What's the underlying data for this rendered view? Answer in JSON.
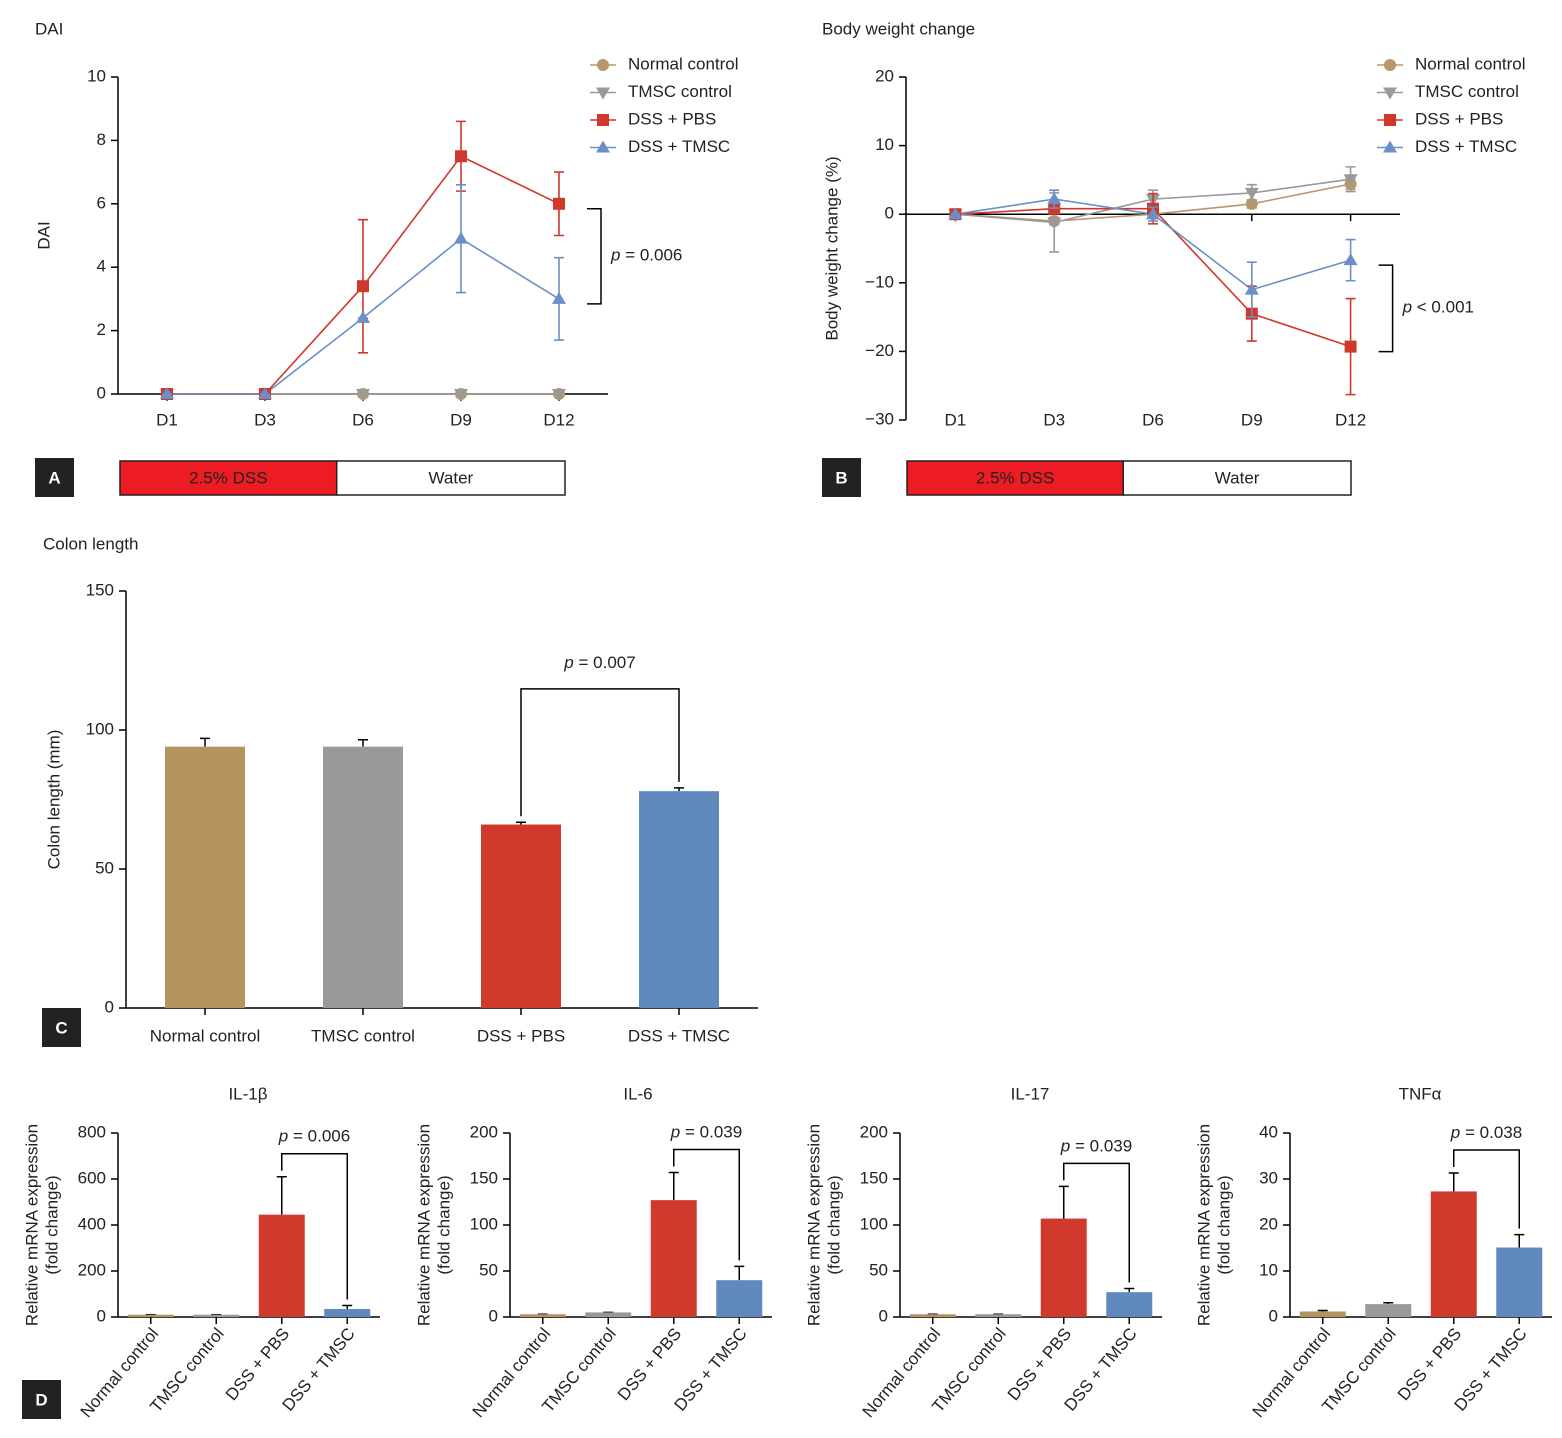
{
  "chart_data": [
    {
      "type": "line",
      "panel_label": "A",
      "title": "DAI",
      "y_label": "DAI",
      "categories": [
        "D1",
        "D3",
        "D6",
        "D9",
        "D12"
      ],
      "ylim": [
        0,
        10
      ],
      "yticks": [
        0,
        2,
        4,
        6,
        8,
        10
      ],
      "series": [
        {
          "name": "Normal control",
          "color": "#b8976a",
          "marker": "circle",
          "values": [
            0,
            0,
            0,
            0,
            0
          ],
          "errors": [
            0,
            0,
            0,
            0,
            0
          ]
        },
        {
          "name": "TMSC control",
          "color": "#999999",
          "marker": "triangle-down",
          "values": [
            0,
            0,
            0,
            0,
            0
          ],
          "errors": [
            0,
            0,
            0,
            0,
            0
          ]
        },
        {
          "name": "DSS + PBS",
          "color": "#d0382b",
          "marker": "square",
          "values": [
            0,
            0,
            3.4,
            7.5,
            6.0
          ],
          "errors": [
            0,
            0,
            2.1,
            1.1,
            1.0
          ]
        },
        {
          "name": "DSS + TMSC",
          "color": "#6b8fc7",
          "marker": "triangle-up",
          "values": [
            0,
            0,
            2.4,
            4.9,
            3.0
          ],
          "errors": [
            0,
            0,
            0,
            1.7,
            1.3
          ]
        }
      ],
      "annotation": "p = 0.006",
      "timeline": [
        {
          "label": "2.5% DSS",
          "color": "#ed1c24"
        },
        {
          "label": "Water",
          "color": "#ffffff"
        }
      ]
    },
    {
      "type": "line",
      "panel_label": "B",
      "title": "Body weight change",
      "y_label": "Body weight change (%)",
      "categories": [
        "D1",
        "D3",
        "D6",
        "D9",
        "D12"
      ],
      "ylim": [
        -30,
        20
      ],
      "yticks": [
        {
          "value": -30,
          "label": "−30"
        },
        {
          "value": -20,
          "label": "−20"
        },
        {
          "value": -10,
          "label": "−10"
        },
        0,
        10,
        20
      ],
      "series": [
        {
          "name": "Normal control",
          "color": "#b8976a",
          "marker": "circle",
          "values": [
            0,
            -1.0,
            0,
            1.5,
            4.4
          ],
          "errors": [
            0,
            0.5,
            0.5,
            0.6,
            0.8
          ]
        },
        {
          "name": "TMSC control",
          "color": "#999999",
          "marker": "triangle-down",
          "values": [
            0,
            -1.2,
            2.2,
            3.1,
            5.1
          ],
          "errors": [
            0,
            4.3,
            1.3,
            1.2,
            1.8
          ]
        },
        {
          "name": "DSS + PBS",
          "color": "#d0382b",
          "marker": "square",
          "values": [
            0,
            0.8,
            0.8,
            -14.5,
            -19.3
          ],
          "errors": [
            0,
            0.5,
            2.2,
            4.0,
            7.0
          ]
        },
        {
          "name": "DSS + TMSC",
          "color": "#6b8fc7",
          "marker": "triangle-up",
          "values": [
            0,
            2.2,
            0,
            -11.0,
            -6.7
          ],
          "errors": [
            0,
            1.3,
            1.0,
            4.0,
            3.0
          ]
        }
      ],
      "annotation": "p < 0.001",
      "timeline": [
        {
          "label": "2.5% DSS",
          "color": "#ed1c24"
        },
        {
          "label": "Water",
          "color": "#ffffff"
        }
      ]
    },
    {
      "type": "bar",
      "panel_label": "C",
      "title": "Colon length",
      "y_label": "Colon length (mm)",
      "categories": [
        "Normal control",
        "TMSC control",
        "DSS + PBS",
        "DSS + TMSC"
      ],
      "values": [
        94,
        94,
        66,
        78
      ],
      "errors": [
        3,
        2.5,
        0.8,
        1.2
      ],
      "colors": [
        "#b5935e",
        "#999999",
        "#d03a2d",
        "#6089bd"
      ],
      "ylim": [
        0,
        150
      ],
      "yticks": [
        0,
        50,
        100,
        150
      ],
      "annotation": "p = 0.007"
    },
    {
      "type": "bar",
      "panel_label": "D",
      "title": "IL-1β",
      "y_label": [
        "Relative mRNA expression",
        "(fold change)"
      ],
      "categories": [
        "Normal control",
        "TMSC control",
        "DSS + PBS",
        "DSS + TMSC"
      ],
      "values": [
        10,
        10,
        445,
        35
      ],
      "errors": [
        0,
        0,
        165,
        15
      ],
      "colors": [
        "#b5935e",
        "#999999",
        "#d03a2d",
        "#6089bd"
      ],
      "ylim": [
        0,
        800
      ],
      "yticks": [
        0,
        200,
        400,
        600,
        800
      ],
      "annotation": "p = 0.006"
    },
    {
      "type": "bar",
      "title": "IL-6",
      "y_label": [
        "Relative mRNA expression",
        "(fold change)"
      ],
      "categories": [
        "Normal control",
        "TMSC control",
        "DSS + PBS",
        "DSS + TMSC"
      ],
      "values": [
        3,
        5,
        127,
        40
      ],
      "errors": [
        0,
        0,
        30,
        15
      ],
      "colors": [
        "#b5935e",
        "#999999",
        "#d03a2d",
        "#6089bd"
      ],
      "ylim": [
        0,
        200
      ],
      "yticks": [
        0,
        50,
        100,
        150,
        200
      ],
      "annotation": "p = 0.039"
    },
    {
      "type": "bar",
      "title": "IL-17",
      "y_label": [
        "Relative mRNA expression",
        "(fold change)"
      ],
      "categories": [
        "Normal control",
        "TMSC control",
        "DSS + PBS",
        "DSS + TMSC"
      ],
      "values": [
        3,
        3,
        107,
        27
      ],
      "errors": [
        0,
        0,
        35,
        4
      ],
      "colors": [
        "#b5935e",
        "#999999",
        "#d03a2d",
        "#6089bd"
      ],
      "ylim": [
        0,
        200
      ],
      "yticks": [
        0,
        50,
        100,
        150,
        200
      ],
      "annotation": "p = 0.039"
    },
    {
      "type": "bar",
      "title": "TNFα",
      "y_label": [
        "Relative mRNA expression",
        "(fold change)"
      ],
      "categories": [
        "Normal control",
        "TMSC control",
        "DSS + PBS",
        "DSS + TMSC"
      ],
      "values": [
        1.2,
        2.8,
        27.3,
        15.1
      ],
      "errors": [
        0.2,
        0.3,
        4,
        2.8
      ],
      "colors": [
        "#b5935e",
        "#999999",
        "#d03a2d",
        "#6089bd"
      ],
      "ylim": [
        0,
        40
      ],
      "yticks": [
        0,
        10,
        20,
        30,
        40
      ],
      "annotation": "p = 0.038"
    }
  ]
}
